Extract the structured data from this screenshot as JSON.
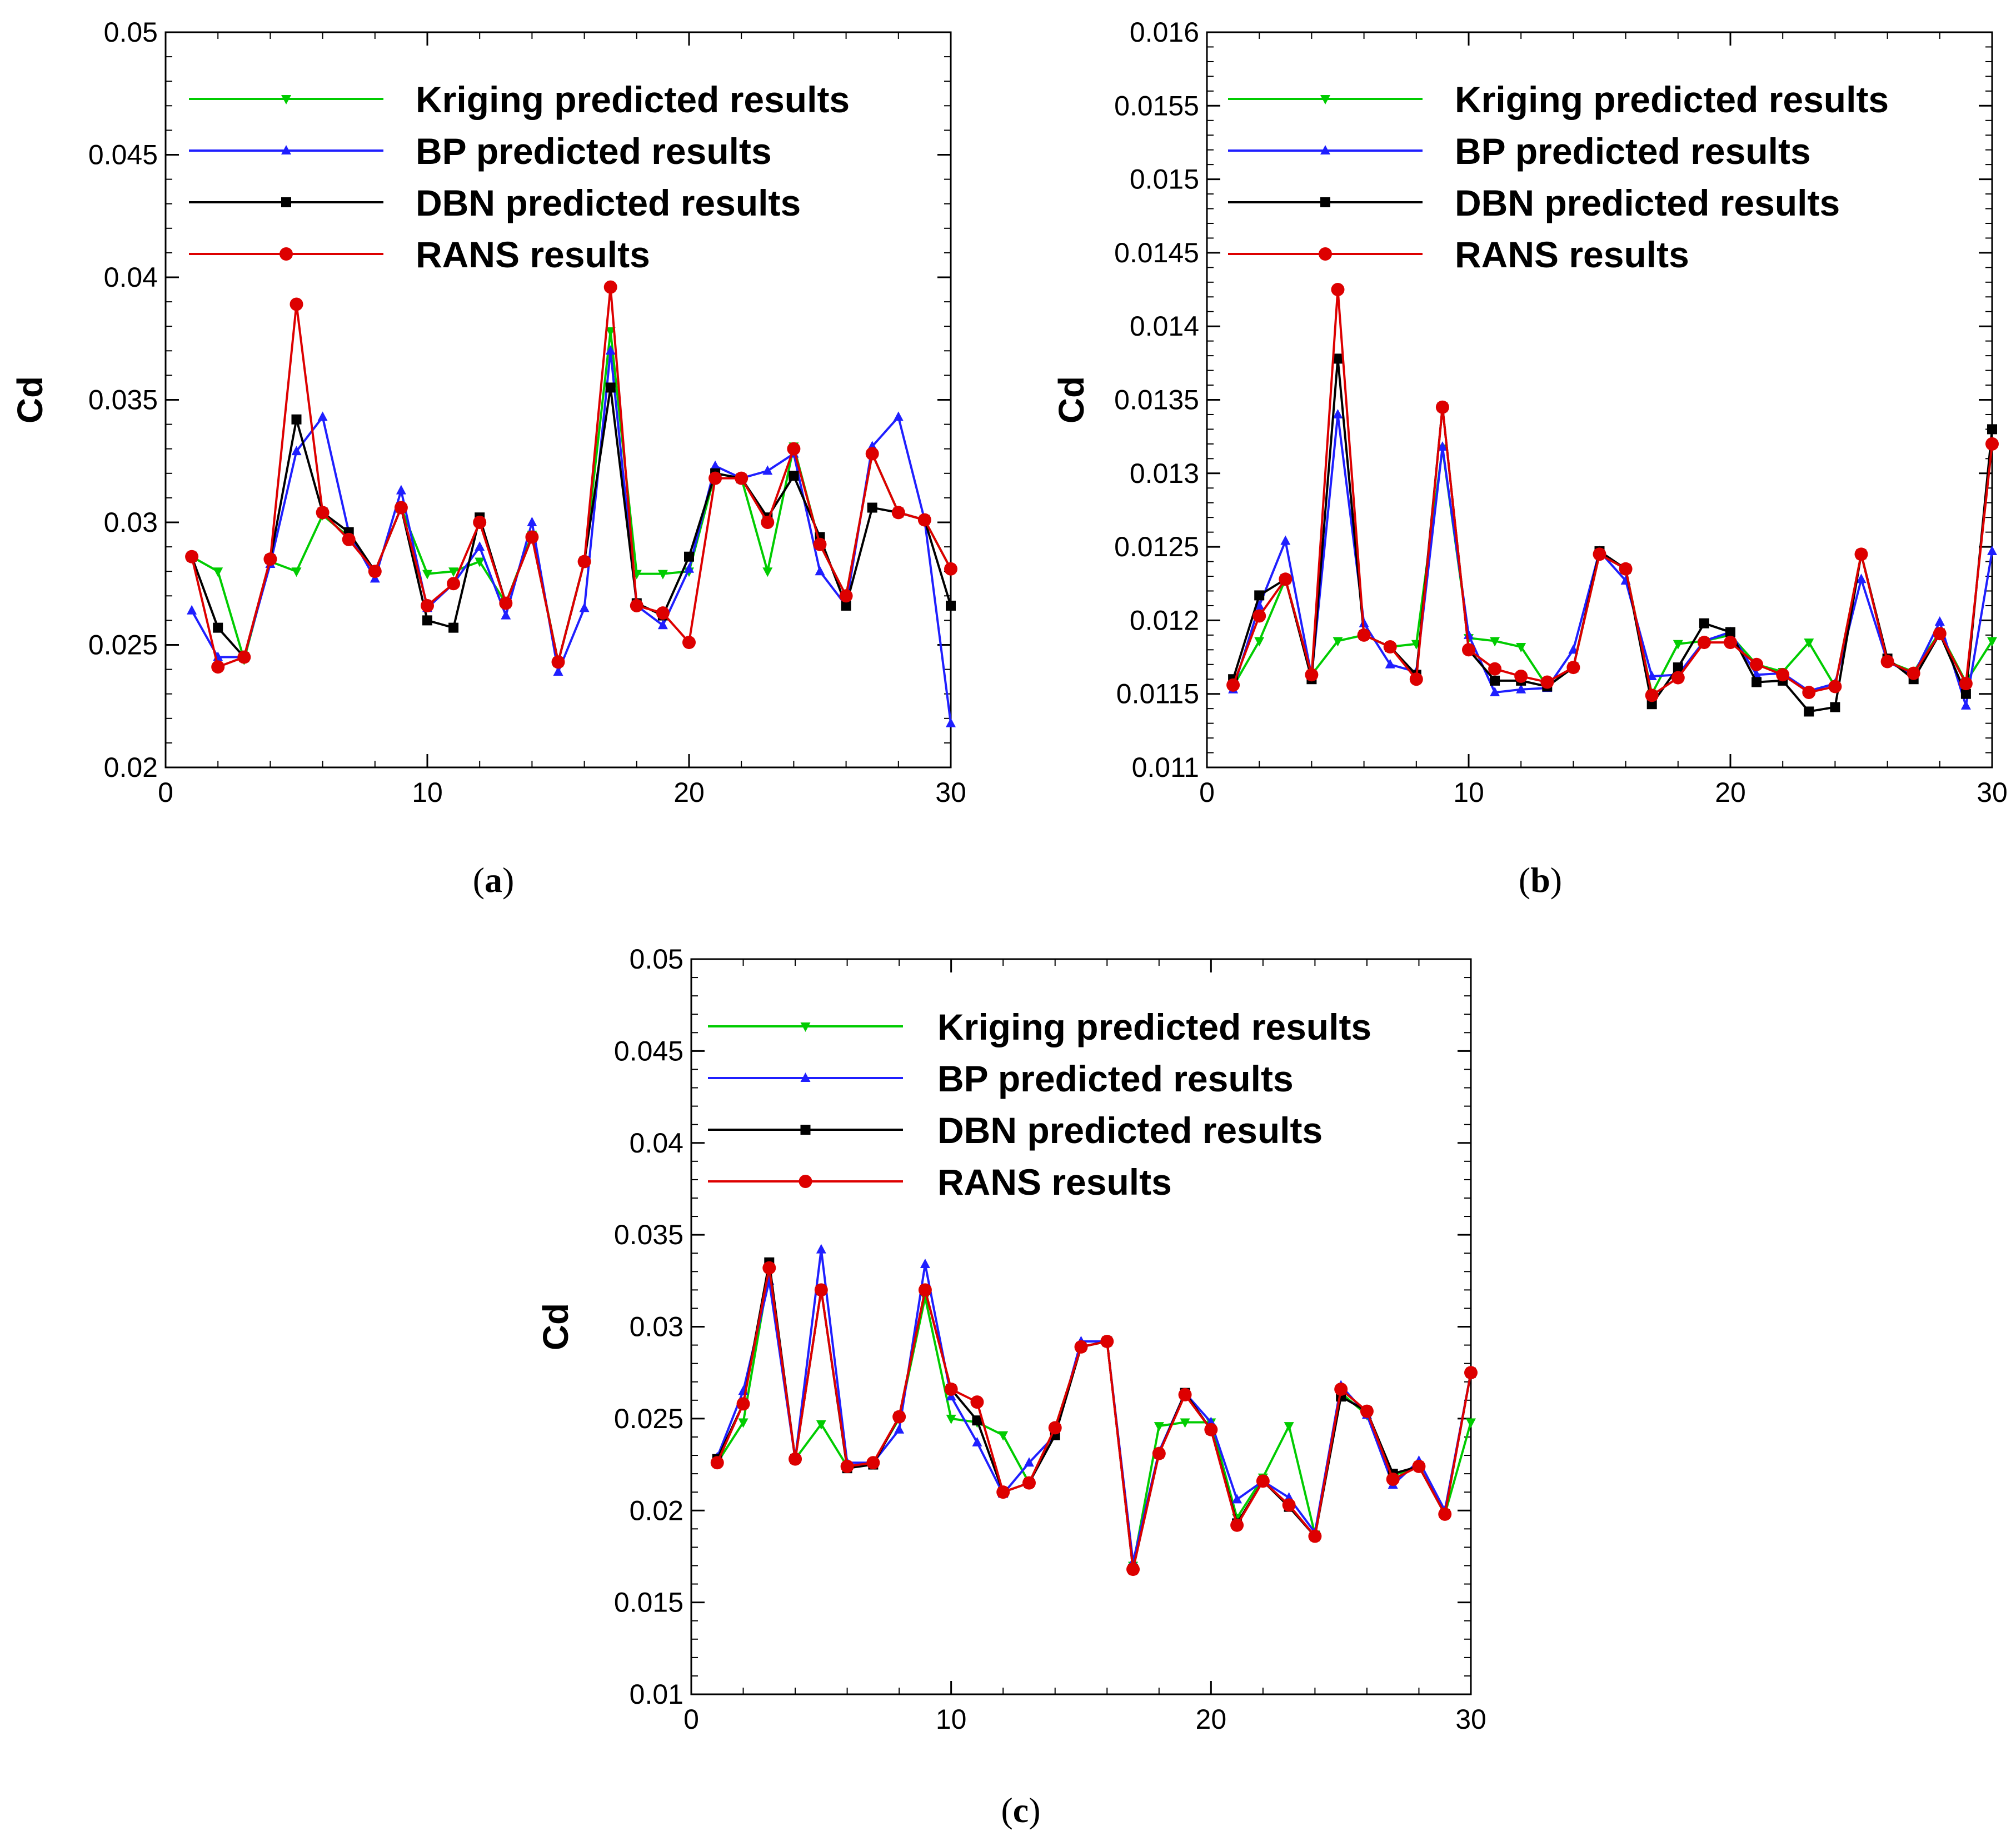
{
  "chart_data": [
    {
      "type": "line",
      "caption": "a",
      "ylabel": "Cd",
      "xlabel": "",
      "xlim": [
        0,
        30
      ],
      "ylim": [
        0.02,
        0.05
      ],
      "xticks": [
        "0",
        "10",
        "20",
        "30"
      ],
      "yticks": [
        "0.02",
        "0.025",
        "0.03",
        "0.035",
        "0.04",
        "0.045",
        "0.05"
      ],
      "legend_position": "top-right",
      "x": [
        1,
        2,
        3,
        4,
        5,
        6,
        7,
        8,
        9,
        10,
        11,
        12,
        13,
        14,
        15,
        16,
        17,
        18,
        19,
        20,
        21,
        22,
        23,
        24,
        25,
        26,
        27,
        28,
        29,
        30
      ],
      "series": [
        {
          "name": "Kriging predicted results",
          "color": "#00cc00",
          "marker": "triangle-down",
          "values": [
            0.0286,
            0.028,
            0.0244,
            0.0284,
            0.028,
            0.0303,
            0.0294,
            0.028,
            0.0306,
            0.0279,
            0.028,
            0.0284,
            0.0267,
            0.0295,
            0.0243,
            0.0284,
            0.0378,
            0.0279,
            0.0279,
            0.028,
            0.032,
            0.0318,
            0.028,
            0.0331,
            0.0291,
            0.027,
            0.0328,
            0.0304,
            0.0301,
            0.0281
          ]
        },
        {
          "name": "BP predicted results",
          "color": "#1f1fff",
          "marker": "triangle-up",
          "values": [
            0.0264,
            0.0245,
            0.0245,
            0.0283,
            0.0329,
            0.0343,
            0.0296,
            0.0277,
            0.0313,
            0.0265,
            0.0275,
            0.029,
            0.0262,
            0.03,
            0.0239,
            0.0265,
            0.037,
            0.0266,
            0.0258,
            0.0281,
            0.0323,
            0.0318,
            0.0321,
            0.0328,
            0.028,
            0.0266,
            0.0331,
            0.0343,
            0.0301,
            0.0218
          ]
        },
        {
          "name": "DBN predicted results",
          "color": "#000000",
          "marker": "square",
          "values": [
            0.0286,
            0.0257,
            0.0245,
            0.0285,
            0.0342,
            0.0304,
            0.0296,
            0.028,
            0.0306,
            0.026,
            0.0257,
            0.0302,
            0.0267,
            0.0294,
            0.0243,
            0.0284,
            0.0355,
            0.0267,
            0.0262,
            0.0286,
            0.032,
            0.0318,
            0.0302,
            0.0319,
            0.0294,
            0.0266,
            0.0306,
            0.0304,
            0.0301,
            0.0266
          ]
        },
        {
          "name": "RANS results",
          "color": "#dd0000",
          "marker": "circle",
          "values": [
            0.0286,
            0.0241,
            0.0245,
            0.0285,
            0.0389,
            0.0304,
            0.0293,
            0.028,
            0.0306,
            0.0266,
            0.0275,
            0.03,
            0.0267,
            0.0294,
            0.0243,
            0.0284,
            0.0396,
            0.0266,
            0.0263,
            0.0251,
            0.0318,
            0.0318,
            0.03,
            0.033,
            0.0291,
            0.027,
            0.0328,
            0.0304,
            0.0301,
            0.0281
          ]
        }
      ]
    },
    {
      "type": "line",
      "caption": "b",
      "ylabel": "Cd",
      "xlabel": "",
      "xlim": [
        0,
        30
      ],
      "ylim": [
        0.011,
        0.016
      ],
      "xticks": [
        "0",
        "10",
        "20",
        "30"
      ],
      "yticks": [
        "0.011",
        "0.0115",
        "0.012",
        "0.0125",
        "0.013",
        "0.0135",
        "0.014",
        "0.0145",
        "0.015",
        "0.0155",
        "0.016"
      ],
      "legend_position": "top-right",
      "x": [
        1,
        2,
        3,
        4,
        5,
        6,
        7,
        8,
        9,
        10,
        11,
        12,
        13,
        14,
        15,
        16,
        17,
        18,
        19,
        20,
        21,
        22,
        23,
        24,
        25,
        26,
        27,
        28,
        29,
        30
      ],
      "series": [
        {
          "name": "Kriging predicted results",
          "color": "#00cc00",
          "marker": "triangle-down",
          "values": [
            0.01155,
            0.01186,
            0.01228,
            0.01163,
            0.01186,
            0.0119,
            0.01182,
            0.01184,
            0.01317,
            0.01188,
            0.01186,
            0.01182,
            0.01155,
            0.01168,
            0.01245,
            0.01235,
            0.0115,
            0.01184,
            0.01186,
            0.0119,
            0.0117,
            0.01165,
            0.01185,
            0.01155,
            0.01245,
            0.01172,
            0.01165,
            0.01192,
            0.01158,
            0.01186
          ]
        },
        {
          "name": "BP predicted results",
          "color": "#1f1fff",
          "marker": "triangle-up",
          "values": [
            0.01153,
            0.0121,
            0.01254,
            0.01162,
            0.0134,
            0.01198,
            0.0117,
            0.01165,
            0.01318,
            0.0119,
            0.01151,
            0.01153,
            0.01154,
            0.0118,
            0.01247,
            0.01227,
            0.01162,
            0.01163,
            0.01186,
            0.01192,
            0.01163,
            0.01164,
            0.01152,
            0.01157,
            0.01228,
            0.01172,
            0.01163,
            0.01199,
            0.01142,
            0.01247
          ]
        },
        {
          "name": "DBN predicted results",
          "color": "#000000",
          "marker": "square",
          "values": [
            0.0116,
            0.01217,
            0.01228,
            0.0116,
            0.01378,
            0.0119,
            0.01182,
            0.01163,
            0.01345,
            0.0118,
            0.01159,
            0.01159,
            0.01155,
            0.01168,
            0.01247,
            0.01235,
            0.01143,
            0.01168,
            0.01198,
            0.01192,
            0.01158,
            0.01159,
            0.01138,
            0.01141,
            0.01245,
            0.01174,
            0.0116,
            0.01191,
            0.0115,
            0.0133
          ]
        },
        {
          "name": "RANS results",
          "color": "#dd0000",
          "marker": "circle",
          "values": [
            0.01156,
            0.01203,
            0.01228,
            0.01163,
            0.01425,
            0.0119,
            0.01182,
            0.0116,
            0.01345,
            0.0118,
            0.01167,
            0.01162,
            0.01158,
            0.01168,
            0.01245,
            0.01235,
            0.01149,
            0.01161,
            0.01185,
            0.01185,
            0.0117,
            0.01163,
            0.01151,
            0.01155,
            0.01245,
            0.01172,
            0.01164,
            0.01191,
            0.01157,
            0.0132
          ]
        }
      ]
    },
    {
      "type": "line",
      "caption": "c",
      "ylabel": "Cd",
      "xlabel": "",
      "xlim": [
        0,
        30
      ],
      "ylim": [
        0.01,
        0.05
      ],
      "xticks": [
        "0",
        "10",
        "20",
        "30"
      ],
      "yticks": [
        "0.01",
        "0.015",
        "0.02",
        "0.025",
        "0.03",
        "0.035",
        "0.04",
        "0.045",
        "0.05"
      ],
      "legend_position": "top-right",
      "x": [
        1,
        2,
        3,
        4,
        5,
        6,
        7,
        8,
        9,
        10,
        11,
        12,
        13,
        14,
        15,
        16,
        17,
        18,
        19,
        20,
        21,
        22,
        23,
        24,
        25,
        26,
        27,
        28,
        29,
        30
      ],
      "series": [
        {
          "name": "Kriging predicted results",
          "color": "#00cc00",
          "marker": "triangle-down",
          "values": [
            0.0226,
            0.0248,
            0.033,
            0.0228,
            0.0247,
            0.0224,
            0.0226,
            0.025,
            0.0316,
            0.025,
            0.0248,
            0.0241,
            0.0215,
            0.0245,
            0.0289,
            0.0292,
            0.017,
            0.0246,
            0.0248,
            0.0248,
            0.0196,
            0.0218,
            0.0246,
            0.0187,
            0.0264,
            0.0252,
            0.0219,
            0.0224,
            0.0198,
            0.0248
          ]
        },
        {
          "name": "BP predicted results",
          "color": "#1f1fff",
          "marker": "triangle-up",
          "values": [
            0.0229,
            0.0265,
            0.0325,
            0.0228,
            0.0342,
            0.0226,
            0.0226,
            0.0244,
            0.0334,
            0.0262,
            0.0237,
            0.0209,
            0.0226,
            0.0241,
            0.0292,
            0.0292,
            0.0172,
            0.0232,
            0.0264,
            0.0248,
            0.0206,
            0.0216,
            0.0207,
            0.0188,
            0.0268,
            0.0252,
            0.0214,
            0.0227,
            0.02,
            0.0275
          ]
        },
        {
          "name": "DBN predicted results",
          "color": "#000000",
          "marker": "square",
          "values": [
            0.0228,
            0.0258,
            0.0335,
            0.0228,
            0.032,
            0.0223,
            0.0225,
            0.0251,
            0.032,
            0.0266,
            0.0249,
            0.021,
            0.0215,
            0.0241,
            0.0289,
            0.0292,
            0.0168,
            0.0231,
            0.0264,
            0.0244,
            0.0193,
            0.0216,
            0.0202,
            0.0186,
            0.0262,
            0.0254,
            0.022,
            0.0224,
            0.0198,
            0.0275
          ]
        },
        {
          "name": "RANS results",
          "color": "#dd0000",
          "marker": "circle",
          "values": [
            0.0226,
            0.0258,
            0.0332,
            0.0228,
            0.032,
            0.0224,
            0.0226,
            0.0251,
            0.032,
            0.0266,
            0.0259,
            0.021,
            0.0215,
            0.0245,
            0.0289,
            0.0292,
            0.0168,
            0.0231,
            0.0263,
            0.0244,
            0.0192,
            0.0216,
            0.0203,
            0.0186,
            0.0266,
            0.0254,
            0.0217,
            0.0224,
            0.0198,
            0.0275
          ]
        }
      ]
    }
  ]
}
